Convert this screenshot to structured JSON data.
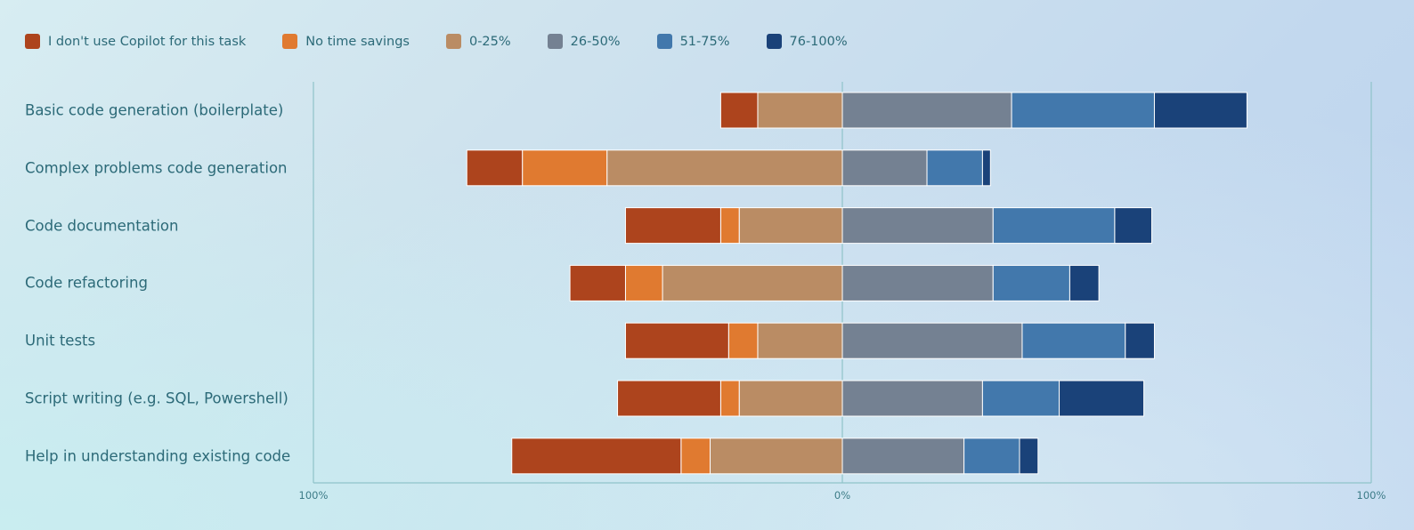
{
  "chart_data": {
    "type": "bar",
    "orientation": "horizontal",
    "stacking": "diverging",
    "categories": [
      "Basic code generation (boilerplate)",
      "Complex problems code generation",
      "Code documentation",
      "Code refactoring",
      "Unit tests",
      "Script writing (e.g. SQL, Powershell)",
      "Help in understanding existing code"
    ],
    "series": [
      {
        "name": "I don't use Copilot for this task",
        "color": "#ad441d",
        "side": "negative",
        "values": [
          7,
          10.5,
          18,
          10.5,
          19.5,
          19.5,
          32
        ]
      },
      {
        "name": "No time savings",
        "color": "#e07a30",
        "side": "negative",
        "values": [
          0,
          16,
          3.5,
          7,
          5.5,
          3.5,
          5.5
        ]
      },
      {
        "name": "0-25%",
        "color": "#ba8c64",
        "side": "negative",
        "values": [
          16,
          44.5,
          19.5,
          34,
          16,
          19.5,
          25
        ]
      },
      {
        "name": "26-50%",
        "color": "#748192",
        "side": "positive",
        "values": [
          32,
          16,
          28.5,
          28.5,
          34,
          26.5,
          23
        ]
      },
      {
        "name": "51-75%",
        "color": "#4278ac",
        "side": "positive",
        "values": [
          27,
          10.5,
          23,
          14.5,
          19.5,
          14.5,
          10.5
        ]
      },
      {
        "name": "76-100%",
        "color": "#1a4279",
        "side": "positive",
        "values": [
          17.5,
          1.5,
          7,
          5.5,
          5.5,
          16,
          3.5
        ]
      }
    ],
    "xlim": [
      -100,
      100
    ],
    "x_tick_labels": [
      "100%",
      "0%",
      "100%"
    ],
    "legend_position": "top-left",
    "grid": false
  }
}
